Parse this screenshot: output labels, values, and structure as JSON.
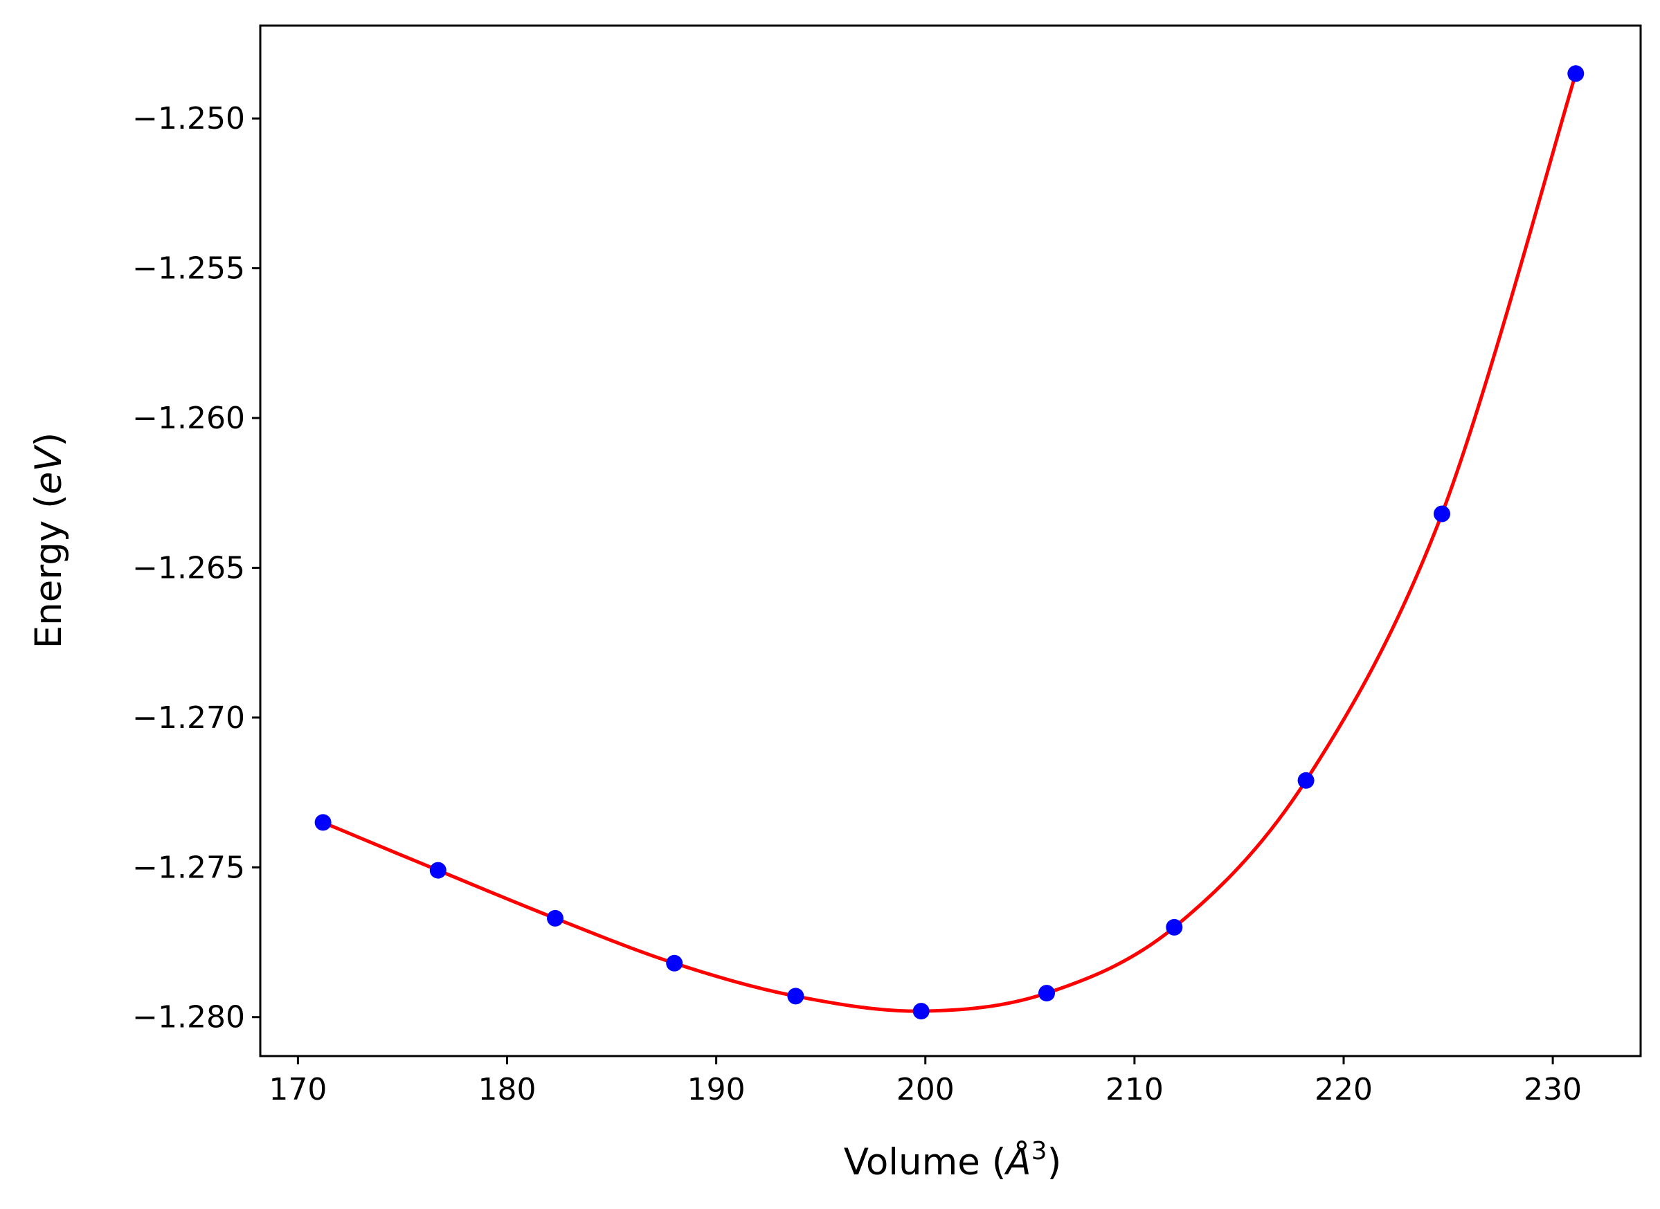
{
  "chart_data": {
    "type": "line",
    "xlabel": "Volume (Å³)",
    "xlabel_parts": {
      "prefix": "Volume (",
      "symbol": "Å",
      "sup": "3",
      "suffix": ")"
    },
    "ylabel": "Energy (eV)",
    "ylabel_parts": {
      "prefix": "Energy (",
      "unit": "eV",
      "suffix": ")"
    },
    "xlim": [
      168.2,
      234.2
    ],
    "ylim": [
      -1.2813,
      -1.2469
    ],
    "xticks": [
      170,
      180,
      190,
      200,
      210,
      220,
      230
    ],
    "xtick_labels": [
      "170",
      "180",
      "190",
      "200",
      "210",
      "220",
      "230"
    ],
    "yticks": [
      -1.25,
      -1.255,
      -1.26,
      -1.265,
      -1.27,
      -1.275,
      -1.28
    ],
    "ytick_labels": [
      "−1.250",
      "−1.255",
      "−1.260",
      "−1.265",
      "−1.270",
      "−1.275",
      "−1.280"
    ],
    "grid": false,
    "series": [
      {
        "style": "markers",
        "color": "#0000ff",
        "x": [
          171.2,
          176.7,
          182.3,
          188.0,
          193.8,
          199.8,
          205.8,
          211.9,
          218.2,
          224.7,
          231.1
        ],
        "y": [
          -1.2735,
          -1.2751,
          -1.2767,
          -1.2782,
          -1.2793,
          -1.2798,
          -1.2792,
          -1.277,
          -1.2721,
          -1.2632,
          -1.2485
        ]
      },
      {
        "style": "line",
        "color": "#ff0000",
        "x": [
          171.2,
          176.7,
          182.3,
          188.0,
          193.8,
          199.8,
          205.8,
          211.9,
          218.2,
          224.7,
          231.1
        ],
        "y": [
          -1.2735,
          -1.2751,
          -1.2767,
          -1.2782,
          -1.2793,
          -1.2798,
          -1.2792,
          -1.277,
          -1.2721,
          -1.2632,
          -1.2485
        ]
      }
    ]
  }
}
